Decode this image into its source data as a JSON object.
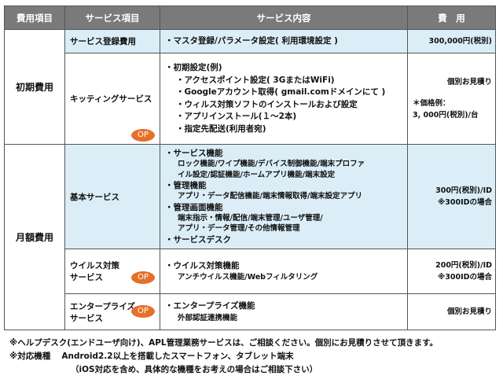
{
  "header": [
    "費用項目",
    "サービス項目",
    "サービス内容",
    "費　用"
  ],
  "op_label": "OP",
  "initial": {
    "category": "初期費用",
    "registration": {
      "name": "サービス登録費用",
      "content": "・マスタ登録/パラメータ設定( 利用環境設定 )",
      "price": "300,000円(税別)"
    },
    "kitting": {
      "name": "キッティングサービス",
      "lines": [
        "・初期設定(例)",
        "・アクセスポイント設定( 3GまたはWiFi)",
        "・Googleアカウント取得( gmail.comドメインにて )",
        "・ウィルス対策ソフトのインストールおよび設定",
        "・アプリインストール(１～2本)",
        "・指定先配送(利用者宛)"
      ],
      "price": "個別お見積り",
      "price_note1": "＊価格例：",
      "price_note2": "3, 000円(税別)/台"
    }
  },
  "monthly": {
    "category": "月額費用",
    "basic": {
      "name": "基本サービス",
      "lines": [
        "・サービス機能",
        "ロック機能/ワイプ機能/デバイス制御機能/端末プロファ",
        "イル設定/認証機能/ホームアプリ機能/端末設定",
        "・管理機能",
        "アプリ・データ配信機能/端末情報取得/端末設定アプリ",
        "・管理画面機能",
        "端末指示・情報/配信/端末管理/ユーザ管理/",
        "アプリ・データ管理/その他情報管理",
        "・サービスデスク"
      ],
      "price": "300円(税別)/ID",
      "price_note": "※300IDの場合"
    },
    "virus": {
      "name1": "ウイルス対策",
      "name2": "サービス",
      "lines": [
        "・ウイルス対策機能",
        "アンチウイルス機能/Webフィルタリング"
      ],
      "price": "200円(税別)/ID",
      "price_note": "※300IDの場合"
    },
    "enterprise": {
      "name1": "エンタープライズ",
      "name2": "サービス",
      "lines": [
        "・エンタープライズ機能",
        "外部認証連携機能"
      ],
      "price": "個別お見積り"
    }
  },
  "notes": [
    "※ヘルプデスク(エンドユーザ向け)、APL管理業務サービスは、ご相談ください。個別にお見積りさせて頂きます。",
    "※対応機種　 Android2.2以上を搭載したスマートフォン、タブレット端末",
    "（iOS対応を含め、具体的な機種をお考えの場合はご相談下さい）"
  ],
  "colors": {
    "header": "#7a7a7a",
    "highlight": "#dbeef8",
    "op_badge": "#e5702a"
  }
}
